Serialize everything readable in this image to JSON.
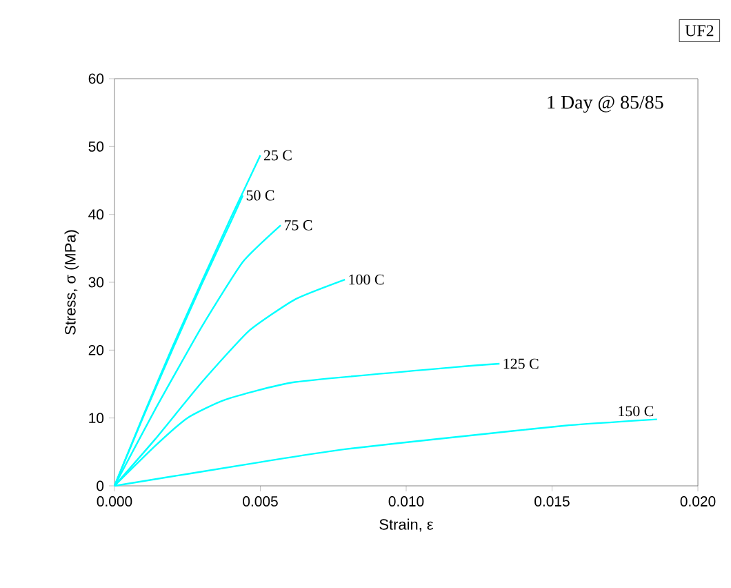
{
  "chart_data": {
    "type": "line",
    "xlabel": "Strain, ε",
    "ylabel": "Stress, σ (MPa)",
    "annotations": [
      "1 Day @ 85/85",
      "UF2"
    ],
    "xlim": [
      0,
      0.02
    ],
    "ylim": [
      0,
      60
    ],
    "xticks": [
      {
        "value": 0,
        "label": "0.000"
      },
      {
        "value": 0.005,
        "label": "0.005"
      },
      {
        "value": 0.01,
        "label": "0.010"
      },
      {
        "value": 0.015,
        "label": "0.015"
      },
      {
        "value": 0.02,
        "label": "0.020"
      }
    ],
    "yticks": [
      0,
      10,
      20,
      30,
      40,
      50,
      60
    ],
    "grid": false,
    "legend": false,
    "marker": "none",
    "line_style": "solid",
    "series": [
      {
        "name": "25 C",
        "color": "#00ffff",
        "x": [
          0,
          0.001,
          0.002,
          0.003,
          0.004,
          0.005
        ],
        "values": [
          0,
          10.5,
          20.6,
          30.2,
          39.6,
          48.7
        ]
      },
      {
        "name": "50 C",
        "color": "#00ffff",
        "x": [
          0,
          0.001,
          0.002,
          0.003,
          0.004,
          0.0044
        ],
        "values": [
          0,
          10.3,
          20.2,
          29.8,
          39.0,
          42.8
        ]
      },
      {
        "name": "75 C",
        "color": "#00ffff",
        "x": [
          0,
          0.0014,
          0.003,
          0.0044,
          0.0057
        ],
        "values": [
          0,
          11.3,
          23.5,
          33.0,
          38.4
        ]
      },
      {
        "name": "100 C",
        "color": "#00ffff",
        "x": [
          0,
          0.0014,
          0.003,
          0.0046,
          0.0062,
          0.0079
        ],
        "values": [
          0,
          6.9,
          15.3,
          22.8,
          27.5,
          30.4
        ]
      },
      {
        "name": "125 C",
        "color": "#00ffff",
        "x": [
          0,
          0.0014,
          0.0025,
          0.0038,
          0.0062,
          0.0117,
          0.0132
        ],
        "values": [
          0,
          5.9,
          10.0,
          12.7,
          15.3,
          17.5,
          18.0
        ]
      },
      {
        "name": "150 C",
        "color": "#00ffff",
        "x": [
          0,
          0.005,
          0.0079,
          0.0117,
          0.0155,
          0.0186
        ],
        "values": [
          0,
          3.5,
          5.4,
          7.2,
          8.9,
          9.8
        ]
      }
    ]
  }
}
